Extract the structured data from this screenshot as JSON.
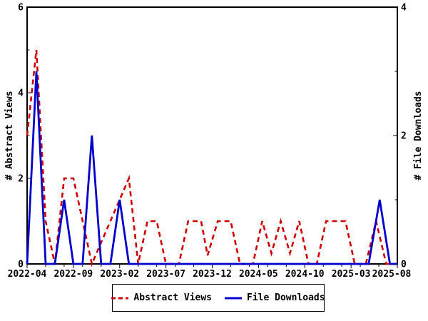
{
  "chart_data": {
    "type": "line",
    "title": "",
    "x_axis": {
      "unit": "month",
      "range_months": [
        0,
        40
      ],
      "labels": [
        "2022-04",
        "2022-09",
        "2023-02",
        "2023-07",
        "2023-12",
        "2024-05",
        "2024-10",
        "2025-03",
        "2025-08"
      ],
      "label_month_positions": [
        0,
        5,
        10,
        15,
        20,
        25,
        30,
        35,
        40
      ],
      "minor_tick_every_months": 2
    },
    "y_left": {
      "title": "# Abstract Views",
      "tick_labels": [
        0,
        2,
        4,
        6
      ],
      "minor_ticks": [
        1,
        3,
        5
      ],
      "range": [
        0,
        6
      ]
    },
    "y_right": {
      "title": "# File Downloads",
      "tick_labels": [
        0,
        2,
        4
      ],
      "minor_ticks": [
        1,
        3
      ],
      "range": [
        0,
        4
      ]
    },
    "series": [
      {
        "name": "Abstract Views",
        "color": "#cc0000",
        "style": "dashed",
        "axis": "left",
        "points": [
          [
            0,
            3
          ],
          [
            1,
            5
          ],
          [
            2,
            1
          ],
          [
            3,
            0
          ],
          [
            4,
            2
          ],
          [
            5,
            2
          ],
          [
            7,
            0
          ],
          [
            11,
            2
          ],
          [
            12,
            0
          ],
          [
            13,
            1
          ],
          [
            14,
            1
          ],
          [
            15,
            0
          ],
          [
            16.4,
            0
          ],
          [
            17.4,
            1
          ],
          [
            18.8,
            1
          ],
          [
            19.5,
            0.2
          ],
          [
            20.6,
            1
          ],
          [
            22,
            1
          ],
          [
            23,
            0
          ],
          [
            24.4,
            0
          ],
          [
            25.4,
            1
          ],
          [
            26.4,
            0.25
          ],
          [
            27.4,
            1
          ],
          [
            28.4,
            0.25
          ],
          [
            29.4,
            1
          ],
          [
            30.4,
            0
          ],
          [
            31.3,
            0
          ],
          [
            32.3,
            1
          ],
          [
            34.4,
            1
          ],
          [
            35.4,
            0
          ],
          [
            36.6,
            0
          ],
          [
            37.7,
            1
          ],
          [
            38.8,
            0
          ],
          [
            40,
            0
          ]
        ]
      },
      {
        "name": "File Downloads",
        "color": "#0000cd",
        "style": "solid",
        "axis": "right",
        "points": [
          [
            0,
            0
          ],
          [
            1,
            3
          ],
          [
            2,
            0
          ],
          [
            3,
            0
          ],
          [
            4,
            1
          ],
          [
            5,
            0
          ],
          [
            6,
            0
          ],
          [
            7,
            2
          ],
          [
            8,
            0
          ],
          [
            9,
            0
          ],
          [
            10,
            1
          ],
          [
            11,
            0
          ],
          [
            36.9,
            0
          ],
          [
            38.1,
            1
          ],
          [
            39.2,
            0
          ],
          [
            40,
            0
          ]
        ]
      }
    ],
    "legend": {
      "position": "bottom-center",
      "entries": [
        "Abstract Views",
        "File Downloads"
      ]
    },
    "frame_color": "#000000",
    "background_color": "#ffffff"
  }
}
